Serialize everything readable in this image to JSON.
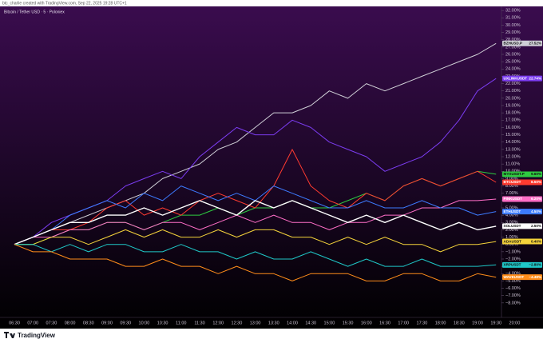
{
  "chart_data": {
    "type": "line",
    "title": "Bitcoin / Tether USD · 5 · Poloniex",
    "annotation": "btc_charlie created with TradingView.com, Sep 22, 2025 19:28 UTC+1",
    "brand": "TradingView",
    "categories": [
      "06:30",
      "07:00",
      "07:30",
      "08:00",
      "08:30",
      "09:00",
      "09:30",
      "10:00",
      "10:30",
      "11:00",
      "11:30",
      "12:00",
      "12:30",
      "13:00",
      "13:30",
      "14:00",
      "14:30",
      "15:00",
      "15:30",
      "16:00",
      "16:30",
      "17:00",
      "17:30",
      "18:00",
      "18:30",
      "19:00",
      "19:30",
      "20:00"
    ],
    "series": [
      {
        "name": "BZHUSD.P",
        "color": "#cfcfd6",
        "values": [
          0,
          1,
          2,
          3,
          4,
          5,
          6,
          7,
          9,
          10,
          11,
          13,
          14,
          16,
          18,
          18,
          19,
          21,
          20,
          22,
          21,
          22,
          23,
          24,
          25,
          26,
          27.5,
          null
        ],
        "value_label": "27.52%"
      },
      {
        "name": "UXLINKUSDT",
        "color": "#7b3cf0",
        "values": [
          0,
          1,
          3,
          4,
          5,
          6,
          8,
          9,
          10,
          9,
          12,
          14,
          16,
          15,
          15,
          17,
          16,
          14,
          13,
          12,
          10,
          11,
          12,
          14,
          17,
          21,
          22.7,
          null
        ],
        "value_label": "22.74%"
      },
      {
        "name": "MYXUSDT.P",
        "color": "#2ecc40",
        "values": [
          0,
          0,
          1,
          2,
          2,
          3,
          3,
          2,
          3,
          4,
          4,
          5,
          4,
          5,
          5,
          6,
          5,
          5,
          6,
          7,
          6,
          8,
          9,
          8,
          9,
          10,
          9.6,
          null
        ],
        "value_label": "9.60%"
      },
      {
        "name": "BTCUSDT",
        "color": "#ff3b30",
        "values": [
          0,
          1,
          2,
          2,
          3,
          5,
          6,
          4,
          5,
          4,
          6,
          7,
          6,
          5,
          8,
          13,
          8,
          6,
          5,
          7,
          6,
          8,
          9,
          8,
          9,
          10,
          8.5,
          null
        ],
        "value_label": "8.50%"
      },
      {
        "name": "PINKUSDT",
        "color": "#ff6ec7",
        "values": [
          0,
          1,
          1,
          2,
          2,
          3,
          3,
          2,
          3,
          3,
          2,
          3,
          4,
          3,
          4,
          3,
          3,
          2,
          3,
          3,
          4,
          4,
          5,
          5,
          6,
          6,
          6.2,
          null
        ],
        "value_label": "6.20%"
      },
      {
        "name": "ETHUSDT",
        "color": "#3d7bff",
        "values": [
          0,
          1,
          2,
          4,
          5,
          6,
          5,
          7,
          6,
          8,
          7,
          6,
          7,
          6,
          8,
          7,
          6,
          5,
          5,
          6,
          5,
          5,
          6,
          5,
          5,
          4,
          4.5,
          null
        ],
        "value_label": "4.50%"
      },
      {
        "name": "SOLUSDT",
        "color": "#ffffff",
        "values": [
          0,
          1,
          2,
          3,
          3,
          4,
          4,
          5,
          4,
          5,
          6,
          5,
          4,
          6,
          5,
          6,
          5,
          4,
          3,
          4,
          3,
          4,
          3,
          2,
          3,
          2,
          2.5,
          null
        ],
        "value_label": "2.50%"
      },
      {
        "name": "ADAUSDT",
        "color": "#f5d33b",
        "values": [
          0,
          0,
          1,
          1,
          0,
          1,
          2,
          1,
          2,
          1,
          1,
          2,
          1,
          2,
          2,
          1,
          1,
          0,
          1,
          0,
          1,
          0,
          0,
          -1,
          0,
          0,
          0.4,
          null
        ],
        "value_label": "0.40%"
      },
      {
        "name": "XRPUSDT",
        "color": "#1fc7c7",
        "values": [
          0,
          0,
          -1,
          0,
          -1,
          0,
          0,
          -1,
          -1,
          0,
          -1,
          -1,
          -2,
          -1,
          -2,
          -2,
          -1,
          -2,
          -3,
          -2,
          -3,
          -3,
          -2,
          -3,
          -3,
          -3,
          -2.8,
          null
        ],
        "value_label": "−2.80%"
      },
      {
        "name": "WAVEUSDT",
        "color": "#ff8c1a",
        "values": [
          0,
          -1,
          -1,
          -2,
          -2,
          -2,
          -3,
          -3,
          -2,
          -3,
          -3,
          -4,
          -3,
          -4,
          -4,
          -5,
          -4,
          -4,
          -4,
          -5,
          -5,
          -4,
          -4,
          -5,
          -5,
          -4,
          -4.48,
          null
        ],
        "value_label": "−4.48%"
      }
    ],
    "ylim": [
      -9,
      33
    ],
    "yticks": [
      {
        "value": 32,
        "label": "32.00%"
      },
      {
        "value": 31,
        "label": "31.00%"
      },
      {
        "value": 30,
        "label": "30.00%"
      },
      {
        "value": 29,
        "label": "29.00%"
      },
      {
        "value": 28,
        "label": "28.00%"
      },
      {
        "value": 27,
        "label": "27.00%"
      },
      {
        "value": 26,
        "label": "26.00%"
      },
      {
        "value": 25,
        "label": "25.00%"
      },
      {
        "value": 24,
        "label": "24.00%"
      },
      {
        "value": 23,
        "label": "23.00%"
      },
      {
        "value": 22,
        "label": "22.00%"
      },
      {
        "value": 21,
        "label": "21.00%"
      },
      {
        "value": 20,
        "label": "20.00%"
      },
      {
        "value": 19,
        "label": "19.00%"
      },
      {
        "value": 18,
        "label": "18.00%"
      },
      {
        "value": 17,
        "label": "17.00%"
      },
      {
        "value": 16,
        "label": "16.00%"
      },
      {
        "value": 15,
        "label": "15.00%"
      },
      {
        "value": 14,
        "label": "14.00%"
      },
      {
        "value": 13,
        "label": "13.00%"
      },
      {
        "value": 12,
        "label": "12.00%"
      },
      {
        "value": 11,
        "label": "11.00%"
      },
      {
        "value": 10,
        "label": "10.00%"
      },
      {
        "value": 9,
        "label": "9.00%"
      },
      {
        "value": 8,
        "label": "8.00%"
      },
      {
        "value": 7,
        "label": "7.00%"
      },
      {
        "value": 6,
        "label": "6.00%"
      },
      {
        "value": 5,
        "label": "5.00%"
      },
      {
        "value": 4,
        "label": "4.00%"
      },
      {
        "value": 3,
        "label": "3.00%"
      },
      {
        "value": 2,
        "label": "2.00%"
      },
      {
        "value": 1,
        "label": "1.00%"
      },
      {
        "value": 0,
        "label": "0.00%"
      },
      {
        "value": -1,
        "label": "−1.00%"
      },
      {
        "value": -2,
        "label": "−2.00%"
      },
      {
        "value": -3,
        "label": "−3.00%"
      },
      {
        "value": -4,
        "label": "−4.00%"
      },
      {
        "value": -5,
        "label": "−5.00%"
      },
      {
        "value": -6,
        "label": "−6.00%"
      },
      {
        "value": -7,
        "label": "−7.00%"
      },
      {
        "value": -8,
        "label": "−8.00%"
      }
    ],
    "grid": false
  }
}
